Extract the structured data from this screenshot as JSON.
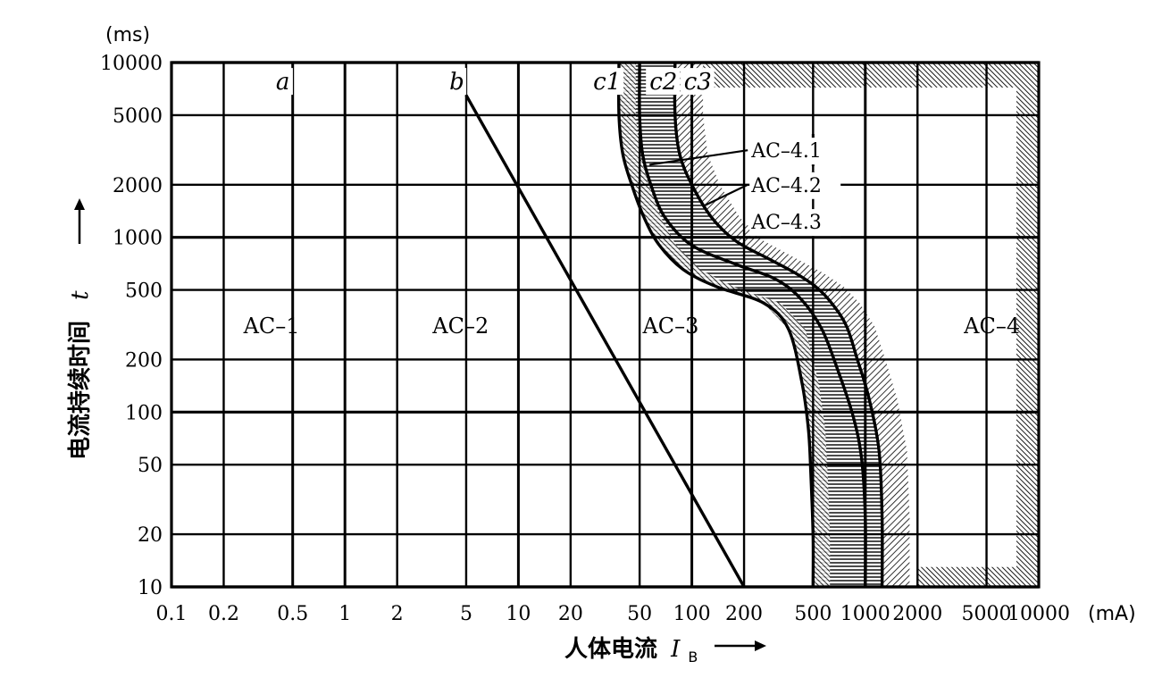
{
  "chart_data": {
    "type": "line",
    "xscale": "log",
    "yscale": "log",
    "xlim": [
      0.1,
      10000
    ],
    "ylim": [
      10,
      10000
    ],
    "grid": true,
    "x_unit": "(mA)",
    "y_unit": "(ms)",
    "xlabel": "人体电流",
    "xlabel_symbol": "I",
    "xlabel_sub": "B",
    "ylabel": "电流持续时间",
    "ylabel_symbol": "t",
    "x_ticks": [
      {
        "value": 0.1,
        "label": "0.1"
      },
      {
        "value": 0.2,
        "label": "0.2"
      },
      {
        "value": 0.5,
        "label": "0.5"
      },
      {
        "value": 1,
        "label": "1"
      },
      {
        "value": 2,
        "label": "2"
      },
      {
        "value": 5,
        "label": "5"
      },
      {
        "value": 10,
        "label": "10"
      },
      {
        "value": 20,
        "label": "20"
      },
      {
        "value": 50,
        "label": "50"
      },
      {
        "value": 100,
        "label": "100"
      },
      {
        "value": 200,
        "label": "200"
      },
      {
        "value": 500,
        "label": "500"
      },
      {
        "value": 1000,
        "label": "1000"
      },
      {
        "value": 2000,
        "label": "2000"
      },
      {
        "value": 5000,
        "label": "5000"
      },
      {
        "value": 10000,
        "label": "10000"
      }
    ],
    "y_ticks": [
      {
        "value": 10000,
        "label": "10000"
      },
      {
        "value": 5000,
        "label": "5000"
      },
      {
        "value": 2000,
        "label": "2000"
      },
      {
        "value": 1000,
        "label": "1000"
      },
      {
        "value": 500,
        "label": "500"
      },
      {
        "value": 200,
        "label": "200"
      },
      {
        "value": 100,
        "label": "100"
      },
      {
        "value": 50,
        "label": "50"
      },
      {
        "value": 20,
        "label": "20"
      },
      {
        "value": 10,
        "label": "10"
      }
    ],
    "series": [
      {
        "name": "a",
        "x": [
          0.5,
          0.5
        ],
        "y": [
          10,
          10000
        ]
      },
      {
        "name": "b",
        "x": [
          5,
          200
        ],
        "y": [
          6500,
          10
        ]
      },
      {
        "name": "c1",
        "x": [
          38,
          38,
          40,
          45,
          53,
          65,
          90,
          140,
          260,
          360,
          430,
          470,
          485,
          500,
          500
        ],
        "y": [
          10000,
          5000,
          3000,
          2000,
          1300,
          900,
          650,
          520,
          420,
          300,
          150,
          80,
          45,
          20,
          10
        ]
      },
      {
        "name": "c2",
        "x": [
          50,
          50,
          52,
          58,
          70,
          100,
          180,
          300,
          420,
          560,
          700,
          850,
          950,
          1000,
          1000
        ],
        "y": [
          10000,
          5000,
          3000,
          2000,
          1300,
          900,
          700,
          580,
          450,
          300,
          170,
          95,
          55,
          25,
          10
        ]
      },
      {
        "name": "c3",
        "x": [
          80,
          80,
          85,
          100,
          130,
          180,
          280,
          400,
          520,
          640,
          780,
          900,
          1050,
          1200,
          1250,
          1250
        ],
        "y": [
          10000,
          5000,
          3000,
          2000,
          1300,
          950,
          750,
          620,
          520,
          420,
          310,
          200,
          120,
          60,
          25,
          10
        ]
      }
    ],
    "curve_labels": [
      {
        "text": "a",
        "x": 0.4,
        "y": 7800
      },
      {
        "text": "b",
        "x": 4.0,
        "y": 7800
      },
      {
        "text": "c1",
        "x": 27,
        "y": 7800
      },
      {
        "text": "c2",
        "x": 57,
        "y": 7800
      },
      {
        "text": "c3",
        "x": 90,
        "y": 7800
      }
    ],
    "zones": [
      {
        "text": "AC–1",
        "x": 0.26,
        "y": 310
      },
      {
        "text": "AC–2",
        "x": 3.2,
        "y": 310
      },
      {
        "text": "AC–3",
        "x": 52,
        "y": 310
      },
      {
        "text": "AC–4",
        "x": 3700,
        "y": 310
      }
    ],
    "ac4_labels": [
      {
        "text": "AC–4.1",
        "x": 380,
        "y": 3150,
        "target_x": 57,
        "target_y": 2600
      },
      {
        "text": "AC–4.2",
        "x": 380,
        "y": 2000,
        "target_x": 115,
        "target_y": 1500
      },
      {
        "text": "AC–4.3",
        "x": 380,
        "y": 1230,
        "target_x": null,
        "target_y": null
      }
    ]
  }
}
